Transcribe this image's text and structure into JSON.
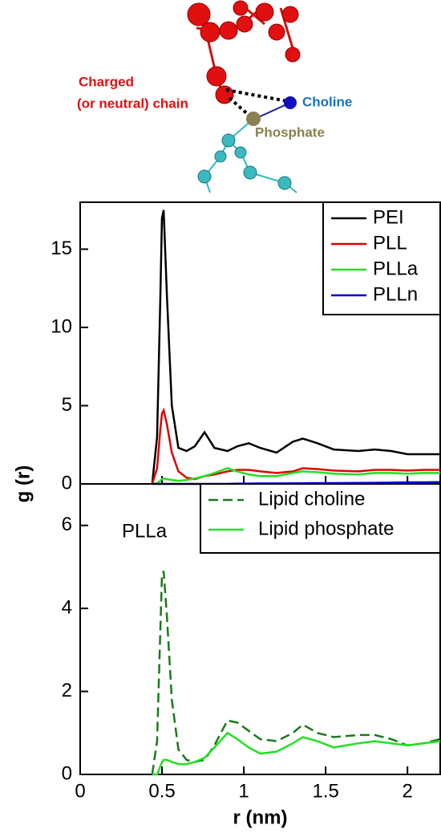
{
  "diagram": {
    "chain": [
      "Charged",
      "(or neutral) chain"
    ],
    "choline": "Choline",
    "phosphate": "Phosphate"
  },
  "chart_data": [
    {
      "type": "line",
      "ylabel": "g (r)",
      "x": [
        0.44,
        0.47,
        0.49,
        0.5,
        0.51,
        0.53,
        0.56,
        0.6,
        0.65,
        0.7,
        0.76,
        0.82,
        0.9,
        0.96,
        1.03,
        1.1,
        1.2,
        1.3,
        1.36,
        1.45,
        1.55,
        1.7,
        1.8,
        1.9,
        2.0,
        2.1,
        2.2
      ],
      "series": [
        {
          "name": "PEI",
          "color": "#000000",
          "values": [
            0,
            3,
            12,
            17,
            17.5,
            12,
            5,
            2.3,
            2.1,
            2.4,
            3.3,
            2.3,
            2.1,
            2.4,
            2.6,
            2.3,
            2.0,
            2.7,
            2.9,
            2.6,
            2.2,
            2.1,
            2.2,
            2.1,
            1.9,
            1.9,
            1.9
          ]
        },
        {
          "name": "PLL",
          "color": "#e00000",
          "values": [
            0,
            1,
            3.5,
            4.5,
            4.7,
            3.8,
            2,
            0.8,
            0.4,
            0.3,
            0.5,
            0.6,
            0.8,
            0.9,
            0.9,
            0.8,
            0.7,
            0.8,
            1.0,
            0.95,
            0.85,
            0.8,
            0.9,
            0.9,
            0.85,
            0.9,
            0.9
          ]
        },
        {
          "name": "PLLa",
          "color": "#22e022",
          "values": [
            0,
            0.05,
            0.2,
            0.3,
            0.35,
            0.3,
            0.25,
            0.2,
            0.25,
            0.35,
            0.5,
            0.7,
            1.0,
            0.8,
            0.6,
            0.5,
            0.5,
            0.7,
            0.8,
            0.75,
            0.65,
            0.6,
            0.7,
            0.7,
            0.65,
            0.7,
            0.7
          ]
        },
        {
          "name": "PLLn",
          "color": "#0000cc",
          "values": [
            0,
            0,
            0,
            0,
            0,
            0,
            0,
            0,
            0,
            0,
            0,
            0,
            0,
            0.02,
            0.02,
            0.03,
            0.03,
            0.04,
            0.04,
            0.05,
            0.05,
            0.06,
            0.07,
            0.08,
            0.1,
            0.1,
            0.12
          ]
        }
      ],
      "xlim": [
        0,
        2.2
      ],
      "xticks": [
        0,
        0.5,
        1,
        1.5,
        2
      ],
      "ylim": [
        0,
        18
      ],
      "yticks": [
        0,
        5,
        10,
        15
      ],
      "legend": "upper right"
    },
    {
      "type": "line",
      "annotation": "PLLa",
      "xlabel": "r (nm)",
      "x": [
        0.44,
        0.47,
        0.49,
        0.5,
        0.51,
        0.53,
        0.56,
        0.6,
        0.65,
        0.7,
        0.76,
        0.82,
        0.9,
        0.96,
        1.03,
        1.1,
        1.2,
        1.3,
        1.36,
        1.45,
        1.55,
        1.7,
        1.8,
        1.9,
        2.0,
        2.1,
        2.2
      ],
      "series": [
        {
          "name": "Lipid choline",
          "color": "#1a7a1a",
          "style": "dashed",
          "values": [
            0,
            0.8,
            3.5,
            4.8,
            4.9,
            3.8,
            1.8,
            0.6,
            0.35,
            0.3,
            0.35,
            0.7,
            1.3,
            1.25,
            1.05,
            0.85,
            0.8,
            1.0,
            1.2,
            1.0,
            0.9,
            0.95,
            0.95,
            0.85,
            0.7,
            0.75,
            0.85
          ]
        },
        {
          "name": "Lipid phosphate",
          "color": "#22e022",
          "style": "solid",
          "values": [
            0,
            0,
            0.2,
            0.3,
            0.35,
            0.35,
            0.3,
            0.25,
            0.25,
            0.3,
            0.4,
            0.65,
            1.0,
            0.85,
            0.65,
            0.5,
            0.55,
            0.75,
            0.9,
            0.8,
            0.65,
            0.75,
            0.8,
            0.75,
            0.7,
            0.75,
            0.8
          ]
        }
      ],
      "xlim": [
        0,
        2.2
      ],
      "xticks": [
        0,
        0.5,
        1,
        1.5,
        2
      ],
      "ylim": [
        0,
        7
      ],
      "yticks": [
        0,
        2,
        4,
        6
      ],
      "legend": "upper right"
    }
  ]
}
